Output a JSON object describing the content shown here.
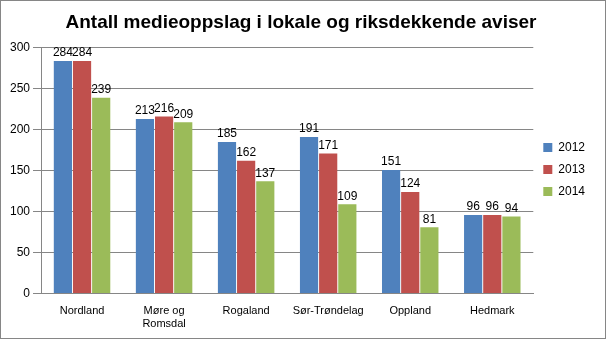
{
  "chart_data": {
    "type": "bar",
    "title": "Antall medieoppslag i lokale og riksdekkende aviser",
    "categories": [
      "Nordland",
      "Møre og Romsdal",
      "Rogaland",
      "Sør-Trøndelag",
      "Oppland",
      "Hedmark"
    ],
    "series": [
      {
        "name": "2012",
        "color": "#4f81bd",
        "values": [
          284,
          213,
          185,
          191,
          151,
          96
        ]
      },
      {
        "name": "2013",
        "color": "#c0504d",
        "values": [
          284,
          216,
          162,
          171,
          124,
          96
        ]
      },
      {
        "name": "2014",
        "color": "#9bbb59",
        "values": [
          239,
          209,
          137,
          109,
          81,
          94
        ]
      }
    ],
    "ylim": [
      0,
      300
    ],
    "yticks": [
      0,
      50,
      100,
      150,
      200,
      250,
      300
    ],
    "grid": true,
    "legend": "right",
    "data_labels": true
  }
}
